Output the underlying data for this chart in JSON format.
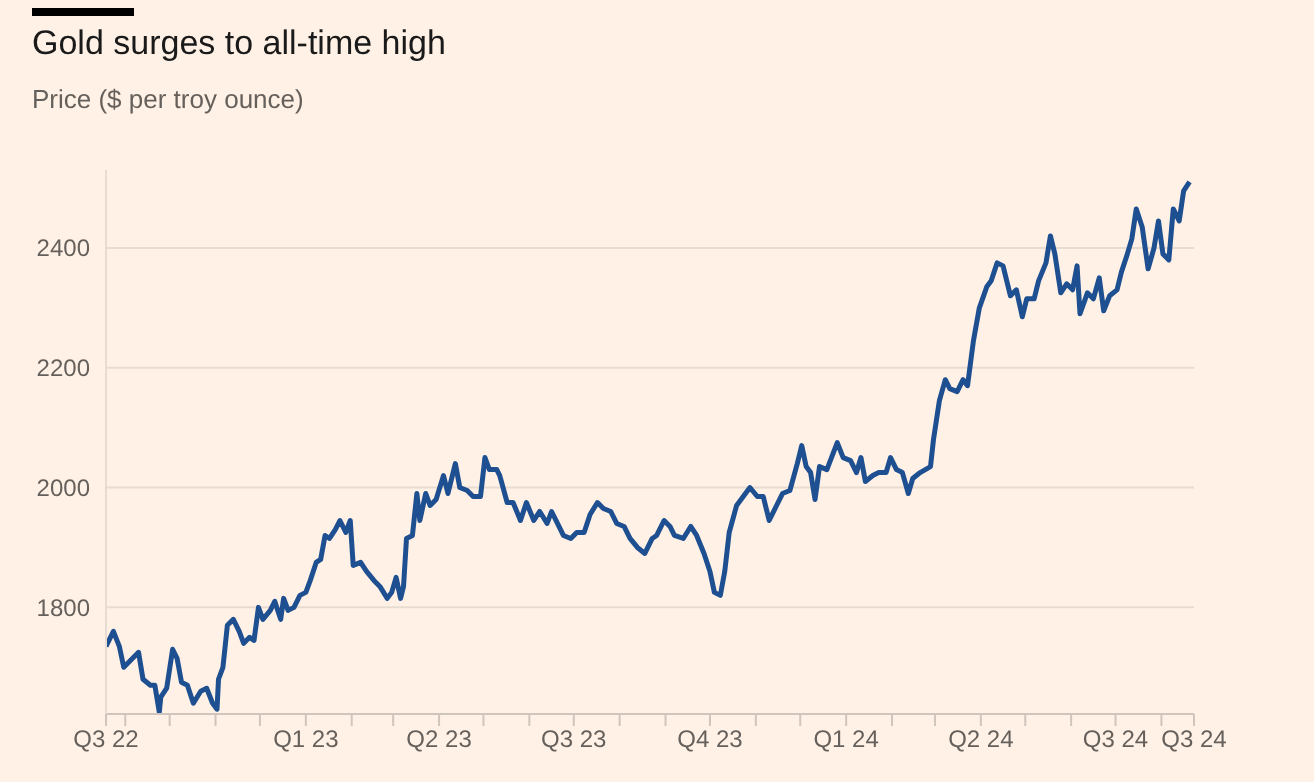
{
  "chart_data": {
    "type": "line",
    "title": "Gold surges to all-time high",
    "subtitle": "Price ($ per troy ounce)",
    "x": [
      "2022-08-19",
      "2022-08-24",
      "2022-08-28",
      "2022-08-31",
      "2022-09-04",
      "2022-09-10",
      "2022-09-13",
      "2022-09-18",
      "2022-09-21",
      "2022-09-24",
      "2022-09-25",
      "2022-09-29",
      "2022-10-03",
      "2022-10-06",
      "2022-10-09",
      "2022-10-13",
      "2022-10-17",
      "2022-10-22",
      "2022-10-26",
      "2022-10-30",
      "2022-11-02",
      "2022-11-03",
      "2022-11-06",
      "2022-11-09",
      "2022-11-13",
      "2022-11-17",
      "2022-11-20",
      "2022-11-24",
      "2022-11-27",
      "2022-11-30",
      "2022-12-03",
      "2022-12-08",
      "2022-12-11",
      "2022-12-15",
      "2022-12-17",
      "2022-12-20",
      "2022-12-24",
      "2022-12-28",
      "2023-01-01",
      "2023-01-04",
      "2023-01-08",
      "2023-01-11",
      "2023-01-14",
      "2023-01-17",
      "2023-01-21",
      "2023-01-24",
      "2023-01-28",
      "2023-01-31",
      "2023-02-02",
      "2023-02-07",
      "2023-02-11",
      "2023-02-16",
      "2023-02-20",
      "2023-02-25",
      "2023-02-28",
      "2023-03-03",
      "2023-03-06",
      "2023-03-08",
      "2023-03-10",
      "2023-03-14",
      "2023-03-17",
      "2023-03-19",
      "2023-03-23",
      "2023-03-26",
      "2023-03-30",
      "2023-04-04",
      "2023-04-07",
      "2023-04-12",
      "2023-04-15",
      "2023-04-20",
      "2023-04-24",
      "2023-04-29",
      "2023-05-02",
      "2023-05-05",
      "2023-05-10",
      "2023-05-12",
      "2023-05-17",
      "2023-05-21",
      "2023-05-26",
      "2023-05-30",
      "2023-06-04",
      "2023-06-08",
      "2023-06-13",
      "2023-06-16",
      "2023-06-20",
      "2023-06-24",
      "2023-06-29",
      "2023-07-03",
      "2023-07-08",
      "2023-07-12",
      "2023-07-17",
      "2023-07-21",
      "2023-07-26",
      "2023-07-30",
      "2023-08-04",
      "2023-08-08",
      "2023-08-13",
      "2023-08-18",
      "2023-08-23",
      "2023-08-26",
      "2023-08-31",
      "2023-09-04",
      "2023-09-07",
      "2023-09-13",
      "2023-09-18",
      "2023-09-22",
      "2023-09-27",
      "2023-10-01",
      "2023-10-04",
      "2023-10-08",
      "2023-10-11",
      "2023-10-14",
      "2023-10-19",
      "2023-10-22",
      "2023-10-28",
      "2023-11-02",
      "2023-11-06",
      "2023-11-10",
      "2023-11-15",
      "2023-11-19",
      "2023-11-24",
      "2023-11-29",
      "2023-12-02",
      "2023-12-05",
      "2023-12-08",
      "2023-12-11",
      "2023-12-14",
      "2023-12-19",
      "2023-12-26",
      "2023-12-30",
      "2024-01-04",
      "2024-01-08",
      "2024-01-11",
      "2024-01-14",
      "2024-01-19",
      "2024-01-23",
      "2024-01-28",
      "2024-01-31",
      "2024-02-04",
      "2024-02-08",
      "2024-02-12",
      "2024-02-15",
      "2024-02-20",
      "2024-02-27",
      "2024-02-29",
      "2024-03-04",
      "2024-03-08",
      "2024-03-11",
      "2024-03-16",
      "2024-03-20",
      "2024-03-23",
      "2024-03-27",
      "2024-03-31",
      "2024-04-05",
      "2024-04-08",
      "2024-04-12",
      "2024-04-16",
      "2024-04-21",
      "2024-04-25",
      "2024-04-29",
      "2024-05-02",
      "2024-05-07",
      "2024-05-10",
      "2024-05-15",
      "2024-05-18",
      "2024-05-21",
      "2024-05-25",
      "2024-05-29",
      "2024-06-02",
      "2024-06-05",
      "2024-06-07",
      "2024-06-12",
      "2024-06-16",
      "2024-06-20",
      "2024-06-23",
      "2024-06-27",
      "2024-07-02",
      "2024-07-05",
      "2024-07-09",
      "2024-07-12",
      "2024-07-15",
      "2024-07-19",
      "2024-07-23",
      "2024-07-27",
      "2024-07-30",
      "2024-08-02",
      "2024-08-06",
      "2024-08-09",
      "2024-08-13",
      "2024-08-16",
      "2024-08-20"
    ],
    "series": [
      {
        "color": "#1d4f91",
        "values": [
          1735,
          1760,
          1735,
          1700,
          1710,
          1725,
          1680,
          1670,
          1670,
          1625,
          1650,
          1665,
          1730,
          1715,
          1675,
          1670,
          1640,
          1660,
          1665,
          1640,
          1630,
          1680,
          1700,
          1770,
          1780,
          1760,
          1740,
          1750,
          1745,
          1800,
          1780,
          1795,
          1810,
          1780,
          1815,
          1795,
          1800,
          1820,
          1825,
          1845,
          1875,
          1880,
          1920,
          1915,
          1930,
          1945,
          1925,
          1945,
          1870,
          1875,
          1860,
          1845,
          1835,
          1815,
          1825,
          1850,
          1815,
          1835,
          1915,
          1920,
          1990,
          1945,
          1990,
          1970,
          1980,
          2020,
          1990,
          2040,
          2000,
          1995,
          1985,
          1985,
          2050,
          2030,
          2030,
          2020,
          1975,
          1975,
          1945,
          1975,
          1945,
          1960,
          1940,
          1960,
          1940,
          1920,
          1915,
          1925,
          1925,
          1955,
          1975,
          1965,
          1960,
          1940,
          1935,
          1915,
          1900,
          1890,
          1915,
          1920,
          1945,
          1935,
          1920,
          1915,
          1935,
          1920,
          1890,
          1860,
          1825,
          1820,
          1860,
          1925,
          1970,
          1980,
          2000,
          1985,
          1985,
          1945,
          1970,
          1990,
          1995,
          2040,
          2070,
          2035,
          2025,
          1980,
          2035,
          2030,
          2075,
          2050,
          2045,
          2025,
          2050,
          2010,
          2020,
          2025,
          2025,
          2050,
          2030,
          2025,
          1990,
          2015,
          2025,
          2035,
          2080,
          2145,
          2180,
          2165,
          2160,
          2180,
          2170,
          2245,
          2300,
          2335,
          2345,
          2375,
          2370,
          2320,
          2330,
          2285,
          2315,
          2315,
          2345,
          2375,
          2420,
          2390,
          2325,
          2340,
          2330,
          2370,
          2290,
          2325,
          2315,
          2350,
          2295,
          2320,
          2330,
          2360,
          2390,
          2415,
          2465,
          2435,
          2365,
          2400,
          2445,
          2390,
          2380,
          2465,
          2445,
          2495,
          2510
        ]
      }
    ],
    "xlim": [
      "2022-08-19",
      "2024-08-23"
    ],
    "xticks": [
      {
        "value": "2022-08-19",
        "label": "Q3 22"
      },
      {
        "value": "2022-09-01",
        "label": null
      },
      {
        "value": "2022-10-01",
        "label": null
      },
      {
        "value": "2022-11-01",
        "label": null
      },
      {
        "value": "2022-12-01",
        "label": null
      },
      {
        "value": "2023-01-01",
        "label": "Q1 23"
      },
      {
        "value": "2023-02-01",
        "label": null
      },
      {
        "value": "2023-03-01",
        "label": null
      },
      {
        "value": "2023-04-01",
        "label": "Q2 23"
      },
      {
        "value": "2023-05-01",
        "label": null
      },
      {
        "value": "2023-06-01",
        "label": null
      },
      {
        "value": "2023-07-01",
        "label": "Q3 23"
      },
      {
        "value": "2023-08-01",
        "label": null
      },
      {
        "value": "2023-09-01",
        "label": null
      },
      {
        "value": "2023-10-01",
        "label": "Q4 23"
      },
      {
        "value": "2023-11-01",
        "label": null
      },
      {
        "value": "2023-12-01",
        "label": null
      },
      {
        "value": "2024-01-01",
        "label": "Q1 24"
      },
      {
        "value": "2024-02-01",
        "label": null
      },
      {
        "value": "2024-03-01",
        "label": null
      },
      {
        "value": "2024-04-01",
        "label": "Q2 24"
      },
      {
        "value": "2024-05-01",
        "label": null
      },
      {
        "value": "2024-06-01",
        "label": null
      },
      {
        "value": "2024-07-01",
        "label": "Q3 24"
      },
      {
        "value": "2024-08-01",
        "label": null
      },
      {
        "value": "2024-08-23",
        "label": "Q3 24"
      }
    ],
    "ylim": [
      1622,
      2530
    ],
    "yticks": [
      1800,
      2000,
      2200,
      2400
    ],
    "grid": "y",
    "line_style": "solid"
  }
}
